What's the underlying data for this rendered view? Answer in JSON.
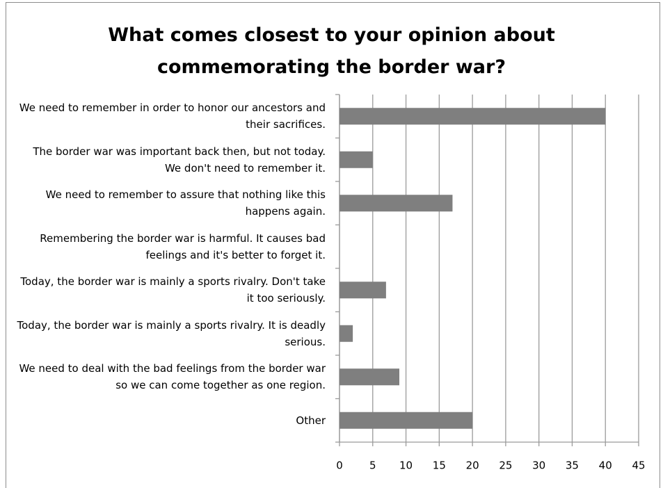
{
  "chart_data": {
    "type": "barh",
    "title": "What comes closest to your opinion about commemorating the border war?",
    "categories": [
      "We need to remember in order to honor our ancestors and their sacrifices.",
      "The border war was important back then, but not today. We don't need to remember it.",
      "We need to remember to assure that nothing like this happens again.",
      "Remembering the border war is harmful. It causes bad feelings and it's better to forget it.",
      "Today, the border war is mainly a sports rivalry. Don't take it too seriously.",
      "Today, the border war is mainly a sports rivalry. It is deadly serious.",
      "We need to deal with the bad feelings from the border war so we can come together as one region.",
      "Other"
    ],
    "values": [
      40,
      5,
      17,
      0,
      7,
      2,
      9,
      20
    ],
    "color": "#7f7f7f",
    "xlim": [
      0,
      45
    ],
    "xticks": [
      0,
      5,
      10,
      15,
      20,
      25,
      30,
      35,
      40,
      45
    ],
    "grid": true
  }
}
